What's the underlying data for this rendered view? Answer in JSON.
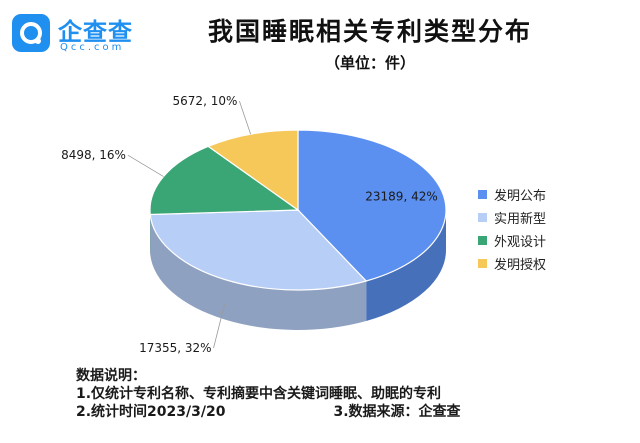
{
  "logo": {
    "name": "企查查",
    "domain": "Qcc.com"
  },
  "colors": {
    "brand": "#1f8ff0"
  },
  "chart_data": {
    "type": "pie",
    "title": "我国睡眠相关专利类型分布",
    "subtitle": "（单位：件）",
    "legend_position": "right",
    "slices": [
      {
        "name": "发明公布",
        "value": 23189,
        "percent": 42,
        "label": "23189, 42%",
        "color": "#5b8ff0"
      },
      {
        "name": "实用新型",
        "value": 17355,
        "percent": 32,
        "label": "17355, 32%",
        "color": "#b7cef6"
      },
      {
        "name": "外观设计",
        "value": 8498,
        "percent": 16,
        "label": "8498, 16%",
        "color": "#3aa676"
      },
      {
        "name": "发明授权",
        "value": 5672,
        "percent": 10,
        "label": "5672, 10%",
        "color": "#f6c85a"
      }
    ]
  },
  "notes": {
    "heading": "数据说明：",
    "line1": "1.仅统计专利名称、专利摘要中含关键词睡眠、助眠的专利",
    "line2": "2.统计时间2023/3/20",
    "line3": "3.数据来源：企查查"
  }
}
